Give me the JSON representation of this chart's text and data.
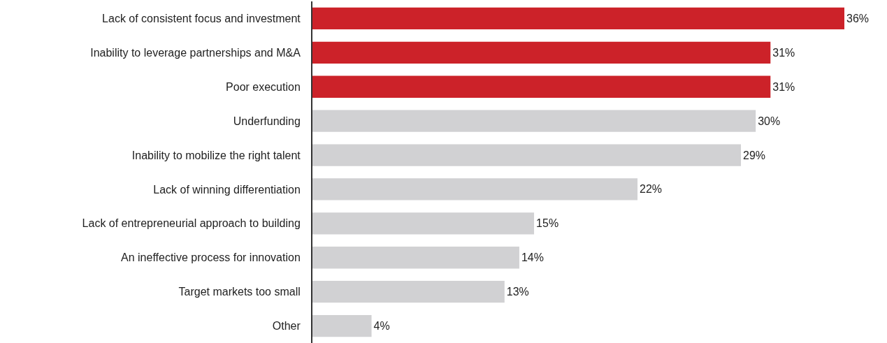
{
  "chart_data": {
    "type": "bar",
    "orientation": "horizontal",
    "categories": [
      "Lack of consistent focus and investment",
      "Inability to leverage partnerships and M&A",
      "Poor execution",
      "Underfunding",
      "Inability to mobilize the right talent",
      "Lack of winning differentiation",
      "Lack of entrepreneurial approach to building",
      "An ineffective process for innovation",
      "Target markets too small",
      "Other"
    ],
    "values": [
      36,
      31,
      31,
      30,
      29,
      22,
      15,
      14,
      13,
      4
    ],
    "colors": [
      "#cc2229",
      "#cc2229",
      "#cc2229",
      "#d1d1d3",
      "#d1d1d3",
      "#d1d1d3",
      "#d1d1d3",
      "#d1d1d3",
      "#d1d1d3",
      "#d1d1d3"
    ],
    "value_labels": [
      "36%",
      "31%",
      "31%",
      "30%",
      "29%",
      "22%",
      "15%",
      "14%",
      "13%",
      "4%"
    ],
    "legend": false
  }
}
